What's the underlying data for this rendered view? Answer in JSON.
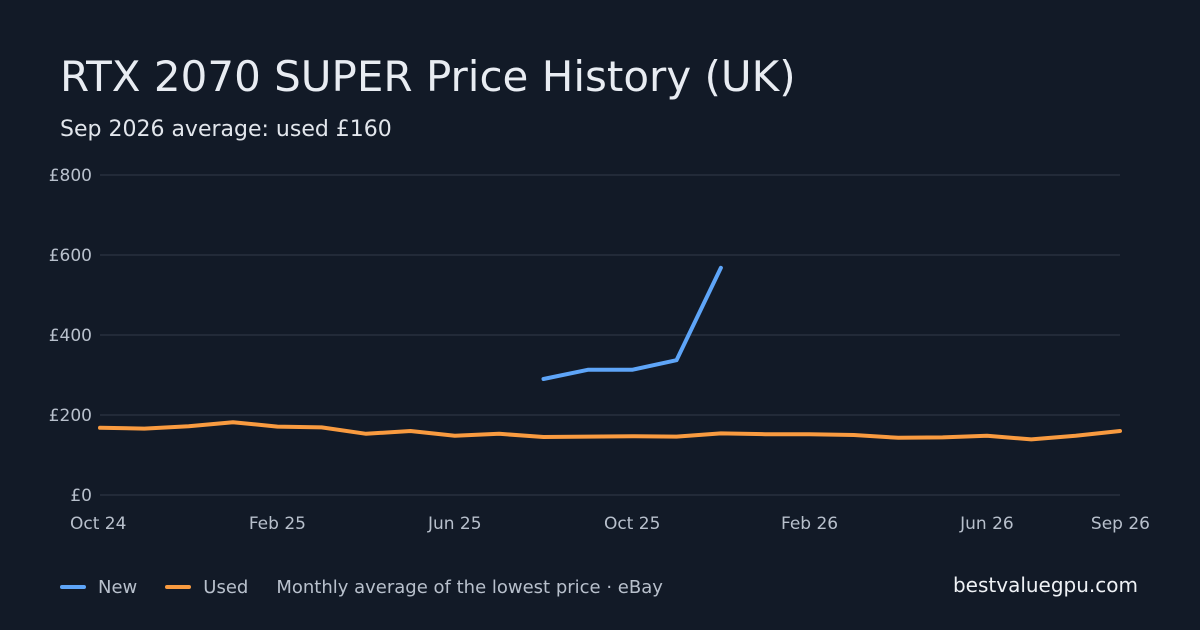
{
  "header": {
    "title": "RTX 2070 SUPER Price History (UK)",
    "subtitle": "Sep 2026 average: used £160"
  },
  "colors": {
    "background": "#121a27",
    "grid": "#27303f",
    "new": "#5ea5f8",
    "used": "#f99b40"
  },
  "chart_data": {
    "type": "line",
    "title": "RTX 2070 SUPER Price History (UK)",
    "subtitle": "Sep 2026 average: used £160",
    "xlabel": "",
    "ylabel": "",
    "months": [
      "Oct 24",
      "Nov 24",
      "Dec 24",
      "Jan 25",
      "Feb 25",
      "Mar 25",
      "Apr 25",
      "May 25",
      "Jun 25",
      "Jul 25",
      "Aug 25",
      "Sep 25",
      "Oct 25",
      "Nov 25",
      "Dec 25",
      "Jan 26",
      "Feb 26",
      "Mar 26",
      "Apr 26",
      "May 26",
      "Jun 26",
      "Jul 26",
      "Aug 26",
      "Sep 26"
    ],
    "x_tick_labels": [
      "Oct 24",
      "Feb 25",
      "Jun 25",
      "Oct 25",
      "Feb 26",
      "Jun 26",
      "Sep 26"
    ],
    "y_ticks": [
      0,
      200,
      400,
      600,
      800
    ],
    "y_tick_labels": [
      "£0",
      "£200",
      "£400",
      "£600",
      "£800"
    ],
    "ylim": [
      0,
      800
    ],
    "grid": true,
    "legend_position": "bottom-left",
    "series": [
      {
        "name": "New",
        "color": "#5ea5f8",
        "values": [
          null,
          null,
          null,
          null,
          null,
          null,
          null,
          null,
          null,
          null,
          290,
          313,
          313,
          337,
          568,
          null,
          null,
          null,
          null,
          null,
          null,
          null,
          null,
          null
        ]
      },
      {
        "name": "Used",
        "color": "#f99b40",
        "values": [
          168,
          166,
          172,
          182,
          171,
          169,
          153,
          160,
          148,
          153,
          145,
          146,
          147,
          146,
          154,
          152,
          152,
          150,
          143,
          144,
          148,
          139,
          148,
          160
        ]
      }
    ]
  },
  "legend": {
    "note": "Monthly average of the lowest price · eBay"
  },
  "footer": {
    "brand": "bestvaluegpu.com"
  }
}
